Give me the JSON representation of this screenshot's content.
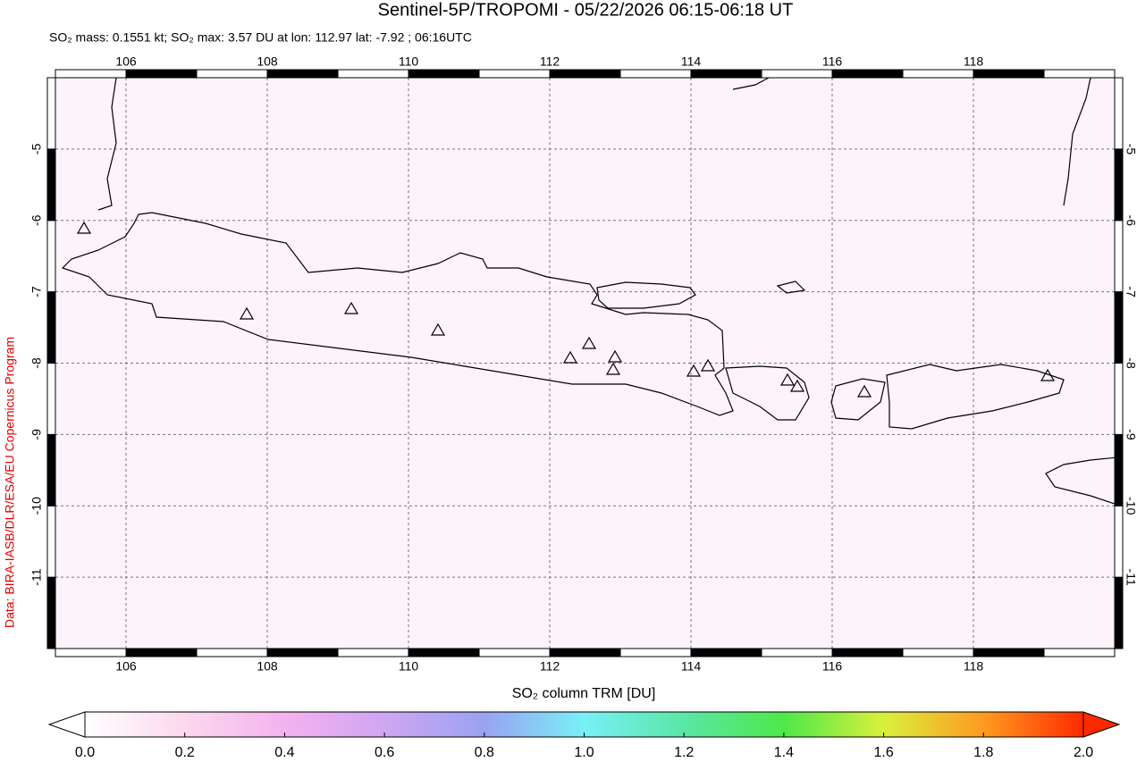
{
  "chart_data": {
    "type": "map",
    "title": "Sentinel-5P/TROPOMI - 05/22/2026 06:15-06:18 UT",
    "subtitle": "SO₂ mass: 0.1551 kt; SO₂ max: 3.57 DU at lon: 112.97 lat: -7.92 ; 06:16UTC",
    "credit": "Data: BIRA-IASB/DLR/ESA/EU Copernicus Program",
    "xlim": [
      105,
      120
    ],
    "xticks": [
      106,
      108,
      110,
      112,
      114,
      116,
      118
    ],
    "ylim": [
      -12,
      -4
    ],
    "yticks": [
      -5,
      -6,
      -7,
      -8,
      -9,
      -10,
      -11
    ],
    "grid": true,
    "colorbar": {
      "label": "SO₂ column TRM [DU]",
      "lim": [
        0,
        2
      ],
      "ticks": [
        {
          "value": 0,
          "label": "0.0"
        },
        0.2,
        0.4,
        0.6,
        0.8,
        {
          "value": 1,
          "label": "1.0"
        },
        1.2,
        1.4,
        1.6,
        1.8,
        {
          "value": 2,
          "label": "2.0"
        }
      ]
    }
  }
}
